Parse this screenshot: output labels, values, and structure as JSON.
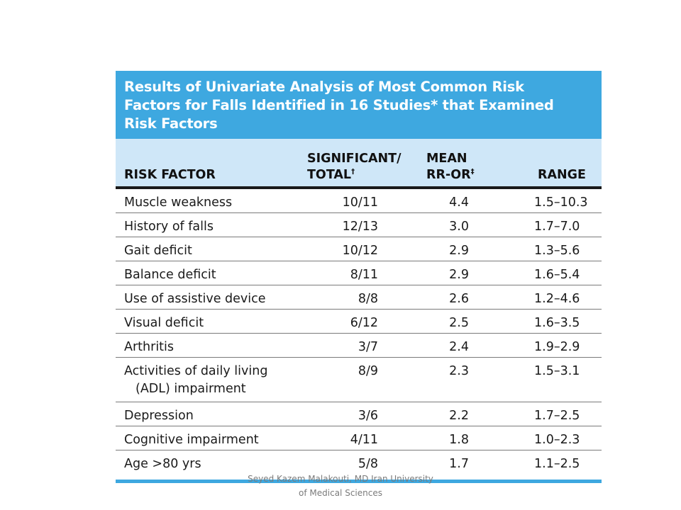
{
  "table": {
    "title_line1": "Results of Univariate Analysis of Most Common Risk",
    "title_line2": "Factors for Falls Identified in 16 Studies* that Examined",
    "title_line3": "Risk Factors",
    "headers": {
      "risk": "RISK FACTOR",
      "sig_line1": "SIGNIFICANT/",
      "sig_line2": "TOTAL",
      "sig_mark": "†",
      "mean_line1": "MEAN",
      "mean_line2": "RR-OR",
      "mean_mark": "‡",
      "range": "RANGE"
    },
    "rows": [
      {
        "risk": "Muscle weakness",
        "sig": "10/11",
        "mean": "4.4",
        "range": "1.5–10.3"
      },
      {
        "risk": "History of falls",
        "sig": "12/13",
        "mean": "3.0",
        "range": "1.7–7.0"
      },
      {
        "risk": "Gait deficit",
        "sig": "10/12",
        "mean": "2.9",
        "range": "1.3–5.6"
      },
      {
        "risk": "Balance deficit",
        "sig": "8/11",
        "mean": "2.9",
        "range": "1.6–5.4"
      },
      {
        "risk": "Use of assistive device",
        "sig": "8/8",
        "mean": "2.6",
        "range": "1.2–4.6"
      },
      {
        "risk": "Visual deficit",
        "sig": "6/12",
        "mean": "2.5",
        "range": "1.6–3.5"
      },
      {
        "risk": "Arthritis",
        "sig": "3/7",
        "mean": "2.4",
        "range": "1.9–2.9"
      },
      {
        "risk": "Activities of daily living",
        "risk_line2": "(ADL) impairment",
        "sig": "8/9",
        "mean": "2.3",
        "range": "1.5–3.1"
      },
      {
        "risk": "Depression",
        "sig": "3/6",
        "mean": "2.2",
        "range": "1.7–2.5"
      },
      {
        "risk": "Cognitive impairment",
        "sig": "4/11",
        "mean": "1.8",
        "range": "1.0–2.3"
      },
      {
        "risk": "Age >80 yrs",
        "sig": "5/8",
        "mean": "1.7",
        "range": "1.1–2.5"
      }
    ]
  },
  "footer": {
    "line1": "Seyed Kazem Malakouti, MD Iran University",
    "line2": "of Medical Sciences"
  },
  "colors": {
    "title_band": "#3ea8e0",
    "header_band": "#cfe7f8",
    "footer_text": "#7b7b7b"
  }
}
